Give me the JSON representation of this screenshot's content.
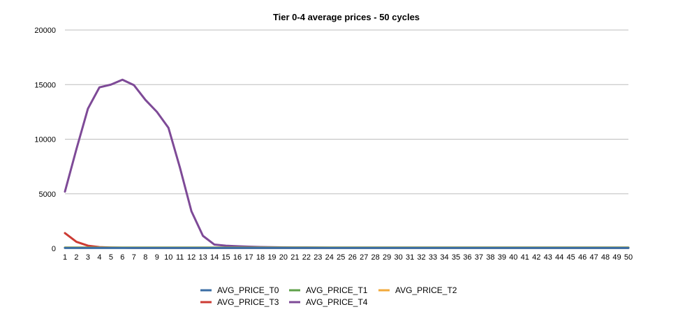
{
  "chart_data": {
    "type": "line",
    "title": "Tier 0-4 average prices - 50 cycles",
    "xlabel": "",
    "ylabel": "",
    "x": [
      1,
      2,
      3,
      4,
      5,
      6,
      7,
      8,
      9,
      10,
      11,
      12,
      13,
      14,
      15,
      16,
      17,
      18,
      19,
      20,
      21,
      22,
      23,
      24,
      25,
      26,
      27,
      28,
      29,
      30,
      31,
      32,
      33,
      34,
      35,
      36,
      37,
      38,
      39,
      40,
      41,
      42,
      43,
      44,
      45,
      46,
      47,
      48,
      49,
      50
    ],
    "ylim": [
      0,
      20000
    ],
    "yticks": [
      0,
      5000,
      10000,
      15000,
      20000
    ],
    "grid": true,
    "legend_position": "bottom",
    "series": [
      {
        "name": "AVG_PRICE_T0",
        "color": "#3a6ea5",
        "values": [
          40,
          40,
          40,
          40,
          40,
          40,
          40,
          40,
          40,
          40,
          40,
          40,
          40,
          40,
          40,
          40,
          40,
          40,
          40,
          40,
          40,
          40,
          40,
          40,
          40,
          40,
          40,
          40,
          40,
          40,
          40,
          40,
          40,
          40,
          40,
          40,
          40,
          40,
          40,
          40,
          40,
          40,
          40,
          40,
          40,
          40,
          40,
          40,
          40,
          40
        ]
      },
      {
        "name": "AVG_PRICE_T1",
        "color": "#5fa14a",
        "values": [
          60,
          60,
          60,
          60,
          60,
          60,
          60,
          60,
          60,
          60,
          60,
          60,
          60,
          60,
          60,
          60,
          60,
          60,
          60,
          60,
          60,
          60,
          60,
          60,
          60,
          60,
          60,
          60,
          60,
          60,
          60,
          60,
          60,
          60,
          60,
          60,
          60,
          60,
          60,
          60,
          60,
          60,
          60,
          60,
          60,
          60,
          60,
          60,
          60,
          60
        ]
      },
      {
        "name": "AVG_PRICE_T2",
        "color": "#f2a93b",
        "values": [
          80,
          80,
          80,
          80,
          80,
          80,
          80,
          80,
          80,
          80,
          80,
          80,
          80,
          80,
          80,
          80,
          80,
          80,
          80,
          80,
          80,
          80,
          80,
          80,
          80,
          80,
          80,
          80,
          80,
          80,
          80,
          80,
          80,
          80,
          80,
          80,
          80,
          80,
          80,
          80,
          80,
          80,
          80,
          80,
          80,
          80,
          80,
          80,
          80,
          80
        ]
      },
      {
        "name": "AVG_PRICE_T3",
        "color": "#cc3b33",
        "values": [
          1400,
          600,
          250,
          120,
          80,
          60,
          50,
          50,
          50,
          50,
          50,
          50,
          50,
          50,
          50,
          50,
          50,
          50,
          50,
          50,
          50,
          50,
          50,
          50,
          50,
          50,
          50,
          50,
          50,
          50,
          50,
          50,
          50,
          50,
          50,
          50,
          50,
          50,
          50,
          50,
          50,
          50,
          50,
          50,
          50,
          50,
          50,
          50,
          50,
          50
        ]
      },
      {
        "name": "AVG_PRICE_T4",
        "color": "#7e4a97",
        "values": [
          5200,
          9100,
          12800,
          14750,
          15000,
          15450,
          14950,
          13600,
          12500,
          11050,
          7400,
          3400,
          1150,
          350,
          250,
          200,
          160,
          130,
          110,
          100,
          90,
          85,
          80,
          75,
          70,
          70,
          70,
          70,
          70,
          70,
          70,
          70,
          70,
          70,
          70,
          70,
          70,
          70,
          70,
          70,
          70,
          70,
          70,
          70,
          70,
          70,
          70,
          70,
          70,
          70
        ]
      }
    ]
  }
}
